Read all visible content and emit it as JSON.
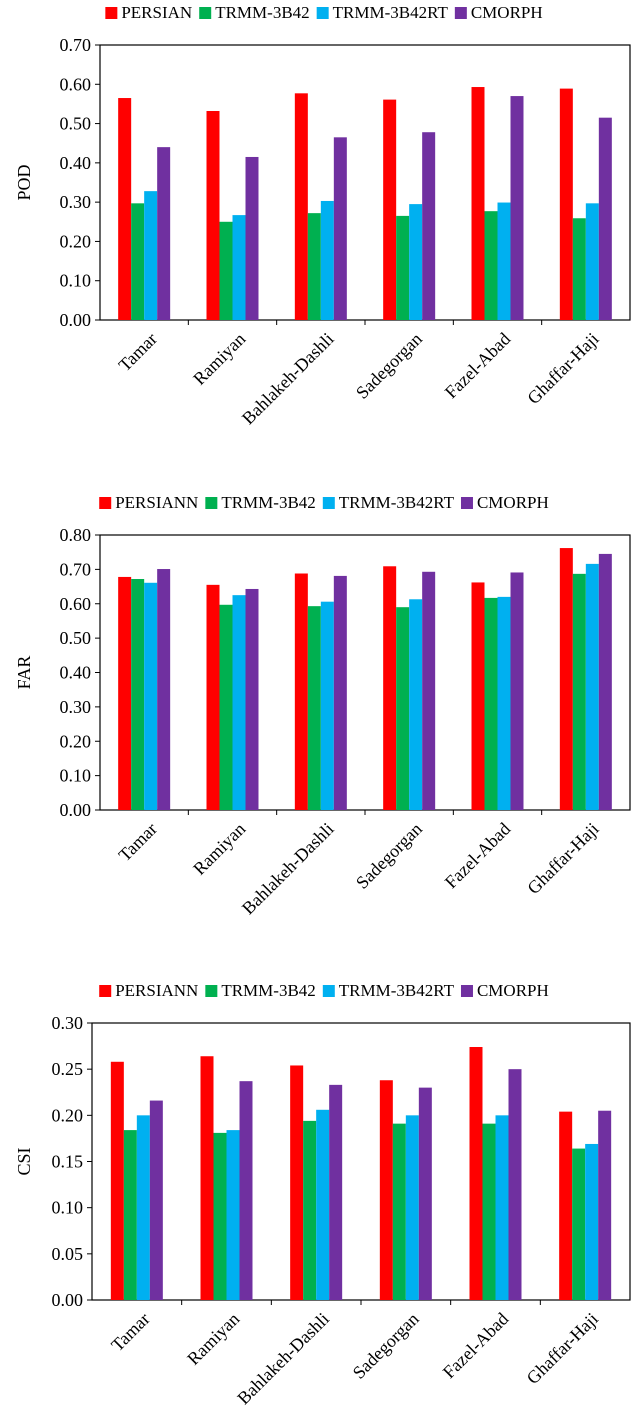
{
  "chart_data": [
    {
      "type": "bar",
      "categories": [
        "Tamar",
        "Ramiyan",
        "Bahlakeh-Dashli",
        "Sadegorgan",
        "Fazel-Abad",
        "Ghaffar-Haji"
      ],
      "series": [
        {
          "name": "PERSIAN",
          "color": "#ff0000",
          "values": [
            0.565,
            0.532,
            0.577,
            0.561,
            0.593,
            0.589
          ]
        },
        {
          "name": "TRMM-3B42",
          "color": "#00b050",
          "values": [
            0.297,
            0.25,
            0.272,
            0.265,
            0.277,
            0.259
          ]
        },
        {
          "name": "TRMM-3B42RT",
          "color": "#00b0f0",
          "values": [
            0.328,
            0.267,
            0.303,
            0.295,
            0.299,
            0.297
          ]
        },
        {
          "name": "CMORPH",
          "color": "#7030a0",
          "values": [
            0.44,
            0.415,
            0.465,
            0.478,
            0.57,
            0.515
          ]
        }
      ],
      "ylabel": "POD",
      "ylim": [
        0,
        0.7
      ],
      "yticks": [
        "0.00",
        "0.10",
        "0.20",
        "0.30",
        "0.40",
        "0.50",
        "0.60",
        "0.70"
      ],
      "legend": "top",
      "grid": false
    },
    {
      "type": "bar",
      "categories": [
        "Tamar",
        "Ramiyan",
        "Bahlakeh-Dashli",
        "Sadegorgan",
        "Fazel-Abad",
        "Ghaffar-Haji"
      ],
      "series": [
        {
          "name": "PERSIANN",
          "color": "#ff0000",
          "values": [
            0.678,
            0.655,
            0.688,
            0.709,
            0.662,
            0.762
          ]
        },
        {
          "name": "TRMM-3B42",
          "color": "#00b050",
          "values": [
            0.672,
            0.597,
            0.593,
            0.59,
            0.617,
            0.687
          ]
        },
        {
          "name": "TRMM-3B42RT",
          "color": "#00b0f0",
          "values": [
            0.661,
            0.625,
            0.606,
            0.613,
            0.62,
            0.716
          ]
        },
        {
          "name": "CMORPH",
          "color": "#7030a0",
          "values": [
            0.701,
            0.643,
            0.681,
            0.693,
            0.691,
            0.745
          ]
        }
      ],
      "ylabel": "FAR",
      "ylim": [
        0,
        0.8
      ],
      "yticks": [
        "0.00",
        "0.10",
        "0.20",
        "0.30",
        "0.40",
        "0.50",
        "0.60",
        "0.70",
        "0.80"
      ],
      "legend": "top",
      "grid": false
    },
    {
      "type": "bar",
      "categories": [
        "Tamar",
        "Ramiyan",
        "Bahlakeh-Dashli",
        "Sadegorgan",
        "Fazel-Abad",
        "Ghaffar-Haji"
      ],
      "series": [
        {
          "name": "PERSIANN",
          "color": "#ff0000",
          "values": [
            0.258,
            0.264,
            0.254,
            0.238,
            0.274,
            0.204
          ]
        },
        {
          "name": "TRMM-3B42",
          "color": "#00b050",
          "values": [
            0.184,
            0.181,
            0.194,
            0.191,
            0.191,
            0.164
          ]
        },
        {
          "name": "TRMM-3B42RT",
          "color": "#00b0f0",
          "values": [
            0.2,
            0.184,
            0.206,
            0.2,
            0.2,
            0.169
          ]
        },
        {
          "name": "CMORPH",
          "color": "#7030a0",
          "values": [
            0.216,
            0.237,
            0.233,
            0.23,
            0.25,
            0.205
          ]
        }
      ],
      "ylabel": "CSI",
      "ylim": [
        0,
        0.3
      ],
      "yticks": [
        "0.00",
        "0.05",
        "0.10",
        "0.15",
        "0.20",
        "0.25",
        "0.30"
      ],
      "legend": "top",
      "grid": false
    }
  ]
}
